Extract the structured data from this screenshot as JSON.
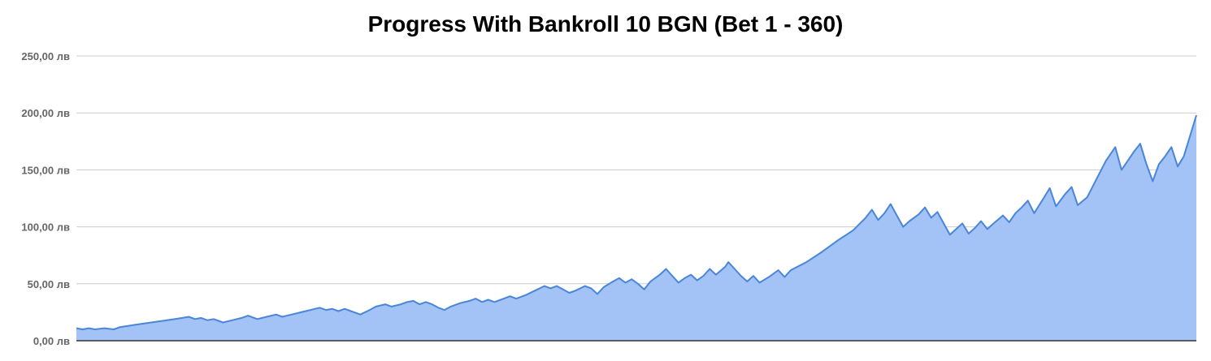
{
  "chart_data": {
    "type": "area",
    "title": "Progress With Bankroll 10 BGN (Bet 1 - 360)",
    "xlabel": "",
    "ylabel": "",
    "x_range": [
      1,
      360
    ],
    "ylim": [
      0,
      250
    ],
    "y_ticks": [
      0,
      50,
      100,
      150,
      200,
      250
    ],
    "y_tick_labels": [
      "0,00 лв",
      "50,00 лв",
      "100,00 лв",
      "150,00 лв",
      "200,00 лв",
      "250,00 лв"
    ],
    "grid": true,
    "legend": "none",
    "colors": {
      "fill": "#a3c2f5",
      "line": "#4a86d8",
      "grid": "#cccccc",
      "axis": "#333333"
    },
    "series": [
      {
        "points": [
          [
            1,
            11
          ],
          [
            3,
            10
          ],
          [
            5,
            11
          ],
          [
            7,
            10
          ],
          [
            10,
            11
          ],
          [
            13,
            10
          ],
          [
            15,
            12
          ],
          [
            20,
            14
          ],
          [
            25,
            16
          ],
          [
            30,
            18
          ],
          [
            35,
            20
          ],
          [
            37,
            21
          ],
          [
            39,
            19
          ],
          [
            41,
            20
          ],
          [
            43,
            18
          ],
          [
            45,
            19
          ],
          [
            48,
            16
          ],
          [
            51,
            18
          ],
          [
            54,
            20
          ],
          [
            56,
            22
          ],
          [
            59,
            19
          ],
          [
            62,
            21
          ],
          [
            65,
            23
          ],
          [
            67,
            21
          ],
          [
            70,
            23
          ],
          [
            73,
            25
          ],
          [
            76,
            27
          ],
          [
            79,
            29
          ],
          [
            81,
            27
          ],
          [
            83,
            28
          ],
          [
            85,
            26
          ],
          [
            87,
            28
          ],
          [
            89,
            26
          ],
          [
            92,
            23
          ],
          [
            95,
            27
          ],
          [
            97,
            30
          ],
          [
            100,
            32
          ],
          [
            102,
            30
          ],
          [
            105,
            32
          ],
          [
            107,
            34
          ],
          [
            109,
            35
          ],
          [
            111,
            32
          ],
          [
            113,
            34
          ],
          [
            115,
            32
          ],
          [
            117,
            29
          ],
          [
            119,
            27
          ],
          [
            121,
            30
          ],
          [
            124,
            33
          ],
          [
            127,
            35
          ],
          [
            129,
            37
          ],
          [
            131,
            34
          ],
          [
            133,
            36
          ],
          [
            135,
            34
          ],
          [
            138,
            37
          ],
          [
            140,
            39
          ],
          [
            142,
            37
          ],
          [
            145,
            40
          ],
          [
            148,
            44
          ],
          [
            151,
            48
          ],
          [
            153,
            46
          ],
          [
            155,
            48
          ],
          [
            157,
            45
          ],
          [
            159,
            42
          ],
          [
            161,
            44
          ],
          [
            164,
            48
          ],
          [
            166,
            46
          ],
          [
            168,
            41
          ],
          [
            170,
            47
          ],
          [
            173,
            52
          ],
          [
            175,
            55
          ],
          [
            177,
            51
          ],
          [
            179,
            54
          ],
          [
            181,
            50
          ],
          [
            183,
            45
          ],
          [
            185,
            52
          ],
          [
            188,
            58
          ],
          [
            190,
            63
          ],
          [
            192,
            57
          ],
          [
            194,
            51
          ],
          [
            196,
            55
          ],
          [
            198,
            58
          ],
          [
            200,
            53
          ],
          [
            202,
            57
          ],
          [
            204,
            63
          ],
          [
            206,
            58
          ],
          [
            209,
            65
          ],
          [
            210,
            69
          ],
          [
            212,
            63
          ],
          [
            214,
            57
          ],
          [
            216,
            52
          ],
          [
            218,
            57
          ],
          [
            220,
            51
          ],
          [
            223,
            56
          ],
          [
            226,
            62
          ],
          [
            228,
            56
          ],
          [
            230,
            62
          ],
          [
            235,
            69
          ],
          [
            240,
            78
          ],
          [
            245,
            88
          ],
          [
            250,
            97
          ],
          [
            254,
            108
          ],
          [
            256,
            115
          ],
          [
            258,
            106
          ],
          [
            260,
            112
          ],
          [
            262,
            120
          ],
          [
            264,
            110
          ],
          [
            266,
            100
          ],
          [
            268,
            105
          ],
          [
            271,
            111
          ],
          [
            273,
            117
          ],
          [
            275,
            108
          ],
          [
            277,
            113
          ],
          [
            279,
            103
          ],
          [
            281,
            93
          ],
          [
            283,
            98
          ],
          [
            285,
            103
          ],
          [
            287,
            94
          ],
          [
            289,
            99
          ],
          [
            291,
            105
          ],
          [
            293,
            98
          ],
          [
            295,
            103
          ],
          [
            298,
            110
          ],
          [
            300,
            104
          ],
          [
            302,
            112
          ],
          [
            304,
            117
          ],
          [
            306,
            123
          ],
          [
            308,
            112
          ],
          [
            311,
            125
          ],
          [
            313,
            134
          ],
          [
            315,
            118
          ],
          [
            318,
            129
          ],
          [
            320,
            135
          ],
          [
            322,
            119
          ],
          [
            325,
            126
          ],
          [
            328,
            142
          ],
          [
            331,
            158
          ],
          [
            334,
            170
          ],
          [
            336,
            150
          ],
          [
            338,
            158
          ],
          [
            340,
            166
          ],
          [
            342,
            173
          ],
          [
            344,
            155
          ],
          [
            346,
            140
          ],
          [
            348,
            155
          ],
          [
            350,
            162
          ],
          [
            352,
            170
          ],
          [
            354,
            153
          ],
          [
            356,
            162
          ],
          [
            360,
            198
          ]
        ]
      }
    ]
  }
}
